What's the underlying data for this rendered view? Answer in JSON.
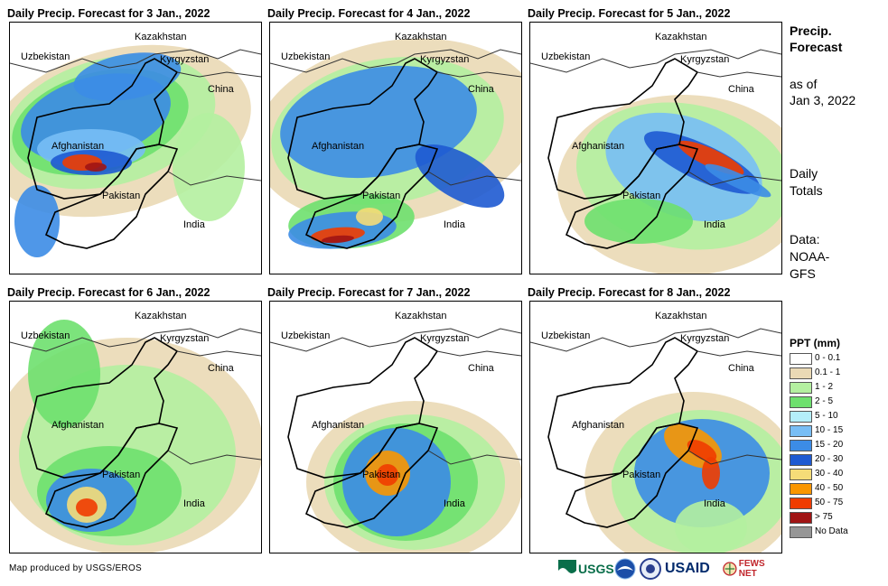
{
  "panels": [
    {
      "title": "Daily Precip. Forecast for 3 Jan., 2022"
    },
    {
      "title": "Daily Precip. Forecast for 4 Jan., 2022"
    },
    {
      "title": "Daily Precip. Forecast for 5 Jan., 2022"
    },
    {
      "title": "Daily Precip. Forecast for 6 Jan., 2022"
    },
    {
      "title": "Daily Precip. Forecast for 7 Jan., 2022"
    },
    {
      "title": "Daily Precip. Forecast for 8 Jan., 2022"
    }
  ],
  "country_labels": {
    "kazakhstan": "Kazakhstan",
    "uzbekistan": "Uzbekistan",
    "kyrgyzstan": "Kyrgyzstan",
    "china": "China",
    "afghanistan": "Afghanistan",
    "pakistan": "Pakistan",
    "india": "India"
  },
  "side": {
    "title_line1": "Precip.",
    "title_line2": "Forecast",
    "asof_line1": "as of",
    "asof_line2": "Jan 3, 2022",
    "totals_line1": "Daily",
    "totals_line2": "Totals",
    "data_line1": "Data:",
    "data_line2": "NOAA-",
    "data_line3": "GFS"
  },
  "legend": {
    "title": "PPT (mm)",
    "items": [
      {
        "label": "0 - 0.1",
        "color": "#ffffff"
      },
      {
        "label": "0.1 - 1",
        "color": "#ead9b5"
      },
      {
        "label": "1 - 2",
        "color": "#b4f0a0"
      },
      {
        "label": "2 - 5",
        "color": "#6ee06e"
      },
      {
        "label": "5 - 10",
        "color": "#b4eefa"
      },
      {
        "label": "10 - 15",
        "color": "#78bef5"
      },
      {
        "label": "15 - 20",
        "color": "#3c8ce6"
      },
      {
        "label": "20 - 30",
        "color": "#1e5ad2"
      },
      {
        "label": "30 - 40",
        "color": "#f5dc78"
      },
      {
        "label": "40 - 50",
        "color": "#fa9600"
      },
      {
        "label": "50 - 75",
        "color": "#f03c00"
      },
      {
        "label": "> 75",
        "color": "#a01414"
      },
      {
        "label": "No Data",
        "color": "#969696"
      }
    ]
  },
  "credit": "Map produced by USGS/EROS",
  "logos": {
    "usgs": "USGS",
    "usaid": "USAID",
    "fewsnet": "FEWS NET"
  }
}
